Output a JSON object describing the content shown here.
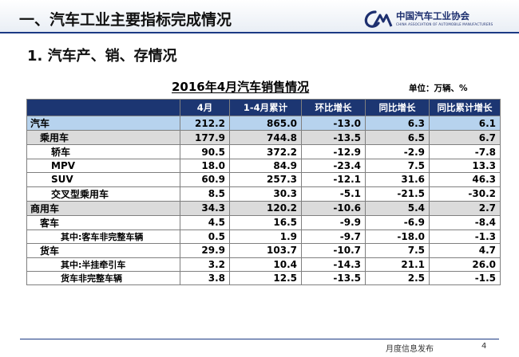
{
  "header": {
    "section_title": "一、汽车工业主要指标完成情况",
    "logo_cn": "中国汽车工业协会",
    "logo_en": "CHINA ASSOCIATION OF AUTOMOBILE MANUFACTURERS",
    "logo_icon": "caam-logo-icon"
  },
  "subtitle": "1. 汽车产、销、存情况",
  "table_title": "2016年4月汽车销售情况",
  "unit": "单位：万辆、%",
  "columns": [
    "",
    "4月",
    "1-4月累计",
    "环比增长",
    "同比增长",
    "同比累计增长"
  ],
  "rows": [
    {
      "label": "汽车",
      "values": [
        "212.2",
        "865.0",
        "-13.0",
        "6.3",
        "6.1"
      ]
    },
    {
      "label": "乘用车",
      "values": [
        "177.9",
        "744.8",
        "-13.5",
        "6.5",
        "6.7"
      ]
    },
    {
      "label": "轿车",
      "values": [
        "90.5",
        "372.2",
        "-12.9",
        "-2.9",
        "-7.8"
      ]
    },
    {
      "label": "MPV",
      "values": [
        "18.0",
        "84.9",
        "-23.4",
        "7.5",
        "13.3"
      ]
    },
    {
      "label": "SUV",
      "values": [
        "60.9",
        "257.3",
        "-12.1",
        "31.6",
        "46.3"
      ]
    },
    {
      "label": "交叉型乘用车",
      "values": [
        "8.5",
        "30.3",
        "-5.1",
        "-21.5",
        "-30.2"
      ]
    },
    {
      "label": "商用车",
      "values": [
        "34.3",
        "120.2",
        "-10.6",
        "5.4",
        "2.7"
      ]
    },
    {
      "label": "客车",
      "values": [
        "4.5",
        "16.5",
        "-9.9",
        "-6.9",
        "-8.4"
      ]
    },
    {
      "label": "其中:客车非完整车辆",
      "values": [
        "0.5",
        "1.9",
        "-9.7",
        "-18.0",
        "-1.3"
      ]
    },
    {
      "label": "货车",
      "values": [
        "29.9",
        "103.7",
        "-10.7",
        "7.5",
        "4.7"
      ]
    },
    {
      "label": "其中:半挂牵引车",
      "values": [
        "3.2",
        "10.4",
        "-14.3",
        "21.1",
        "26.0"
      ]
    },
    {
      "label": "货车非完整车辆",
      "values": [
        "3.8",
        "12.5",
        "-13.5",
        "2.5",
        "-1.5"
      ]
    }
  ],
  "footer": {
    "text": "月度信息发布",
    "page": "4"
  },
  "colors": {
    "header_bg": "#1c3672",
    "total_row": "#b7d3ee",
    "subtotal_row": "#dbdbdb",
    "rule": "#1b3a84"
  }
}
